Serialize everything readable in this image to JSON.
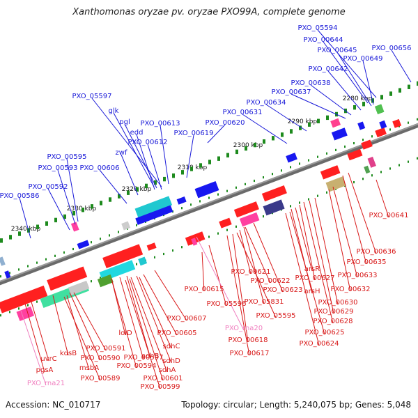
{
  "title": "Xanthomonas oryzae pv. oryzae PXO99A, complete genome",
  "footer": {
    "accession": "Accession: NC_010717",
    "topology": "Topology: circular; Length: 5,240,075 bp; Genes: 5,048"
  },
  "colors": {
    "top_label": "#1818d8",
    "bottom_label": "#d81818",
    "rna_label": "#f080c0",
    "backbone": "#6a6a6a",
    "tick": "#1d8a1d"
  },
  "scale_ticks": [
    "2280 kbp",
    "2290 kbp",
    "2300 kbp",
    "2310 kbp",
    "2320 kbp",
    "2330 kbp",
    "2340 kbp"
  ],
  "top_labels": [
    "PXO_05594",
    "PXO_00644",
    "PXO_00645",
    "PXO_00656",
    "PXO_00642",
    "PXO_00649",
    "PXO_00638",
    "PXO_00637",
    "PXO_05597",
    "PXO_00634",
    "PXO_00631",
    "glk",
    "pgl",
    "PXO_00613",
    "PXO_00620",
    "edd",
    "PXO_00619",
    "PXO_00612",
    "zwf",
    "PXO_00595",
    "PXO_00593",
    "PXO_00606",
    "PXO_00592",
    "PXO_00586"
  ],
  "bottom_labels": [
    "PXO_00641",
    "PXO_00636",
    "PXO_00635",
    "arsR",
    "PXO_00633",
    "PXO_00621",
    "PXO_00627",
    "PXO_00622",
    "arsH",
    "PXO_00632",
    "PXO_00615",
    "PXO_00623",
    "PXO_05596",
    "PXO_05831",
    "PXO_00630",
    "PXO_00629",
    "PXO_00607",
    "PXO_05595",
    "PXO_00628",
    "PXO_00625",
    "PXO_00618",
    "PXO_00605",
    "lolD",
    "PXO_00624",
    "sdhC",
    "PXO_00617",
    "PXO_00591",
    "sdhB",
    "kdsB",
    "PXO_00590",
    "PXO_00597",
    "sdhD",
    "uvrC",
    "msbA",
    "PXO_00594",
    "sdhA",
    "pgsA",
    "PXO_00589",
    "PXO_00601",
    "PXO_00599"
  ],
  "rna_labels": [
    "PXO_rna20",
    "PXO_rna21"
  ]
}
